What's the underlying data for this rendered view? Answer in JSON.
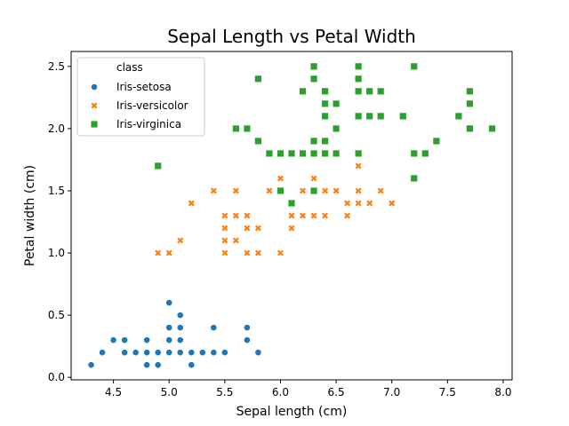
{
  "chart_data": {
    "type": "scatter",
    "title": "Sepal Length vs Petal Width",
    "xlabel": "Sepal length (cm)",
    "ylabel": "Petal width (cm)",
    "xlim": [
      4.12,
      8.08
    ],
    "ylim": [
      -0.02,
      2.62
    ],
    "x_ticks": [
      4.5,
      5.0,
      5.5,
      6.0,
      6.5,
      7.0,
      7.5,
      8.0
    ],
    "x_tick_labels": [
      "4.5",
      "5.0",
      "5.5",
      "6.0",
      "6.5",
      "7.0",
      "7.5",
      "8.0"
    ],
    "y_ticks": [
      0.0,
      0.5,
      1.0,
      1.5,
      2.0,
      2.5
    ],
    "y_tick_labels": [
      "0.0",
      "0.5",
      "1.0",
      "1.5",
      "2.0",
      "2.5"
    ],
    "grid": false,
    "legend": {
      "title": "class",
      "placement": "top-left"
    },
    "series": [
      {
        "name": "Iris-setosa",
        "marker": "circle",
        "color": "#1f77b4",
        "points": [
          [
            4.3,
            0.1
          ],
          [
            4.4,
            0.2
          ],
          [
            4.5,
            0.3
          ],
          [
            4.6,
            0.2
          ],
          [
            4.6,
            0.3
          ],
          [
            4.7,
            0.2
          ],
          [
            4.8,
            0.1
          ],
          [
            4.8,
            0.2
          ],
          [
            4.8,
            0.3
          ],
          [
            4.9,
            0.1
          ],
          [
            4.9,
            0.2
          ],
          [
            5.0,
            0.2
          ],
          [
            5.0,
            0.3
          ],
          [
            5.0,
            0.4
          ],
          [
            5.0,
            0.6
          ],
          [
            5.1,
            0.2
          ],
          [
            5.1,
            0.3
          ],
          [
            5.1,
            0.4
          ],
          [
            5.1,
            0.5
          ],
          [
            5.2,
            0.1
          ],
          [
            5.2,
            0.2
          ],
          [
            5.3,
            0.2
          ],
          [
            5.4,
            0.2
          ],
          [
            5.4,
            0.4
          ],
          [
            5.5,
            0.2
          ],
          [
            5.7,
            0.3
          ],
          [
            5.7,
            0.4
          ],
          [
            5.8,
            0.2
          ]
        ]
      },
      {
        "name": "Iris-versicolor",
        "marker": "x",
        "color": "#ff7f0e",
        "points": [
          [
            4.9,
            1.0
          ],
          [
            5.0,
            1.0
          ],
          [
            5.1,
            1.1
          ],
          [
            5.2,
            1.4
          ],
          [
            5.4,
            1.5
          ],
          [
            5.5,
            1.0
          ],
          [
            5.5,
            1.1
          ],
          [
            5.5,
            1.2
          ],
          [
            5.5,
            1.3
          ],
          [
            5.6,
            1.1
          ],
          [
            5.6,
            1.3
          ],
          [
            5.6,
            1.5
          ],
          [
            5.7,
            1.0
          ],
          [
            5.7,
            1.2
          ],
          [
            5.7,
            1.3
          ],
          [
            5.8,
            1.0
          ],
          [
            5.8,
            1.2
          ],
          [
            5.9,
            1.5
          ],
          [
            6.0,
            1.0
          ],
          [
            6.0,
            1.5
          ],
          [
            6.0,
            1.6
          ],
          [
            6.1,
            1.2
          ],
          [
            6.1,
            1.3
          ],
          [
            6.1,
            1.4
          ],
          [
            6.2,
            1.3
          ],
          [
            6.2,
            1.5
          ],
          [
            6.3,
            1.3
          ],
          [
            6.3,
            1.5
          ],
          [
            6.3,
            1.6
          ],
          [
            6.4,
            1.3
          ],
          [
            6.4,
            1.5
          ],
          [
            6.5,
            1.5
          ],
          [
            6.6,
            1.3
          ],
          [
            6.6,
            1.4
          ],
          [
            6.7,
            1.4
          ],
          [
            6.7,
            1.5
          ],
          [
            6.7,
            1.7
          ],
          [
            6.8,
            1.4
          ],
          [
            6.9,
            1.5
          ],
          [
            7.0,
            1.4
          ]
        ]
      },
      {
        "name": "Iris-virginica",
        "marker": "square",
        "color": "#2ca02c",
        "points": [
          [
            4.9,
            1.7
          ],
          [
            5.6,
            2.0
          ],
          [
            5.7,
            2.0
          ],
          [
            5.8,
            1.9
          ],
          [
            5.8,
            2.4
          ],
          [
            5.9,
            1.8
          ],
          [
            6.0,
            1.5
          ],
          [
            6.0,
            1.8
          ],
          [
            6.1,
            1.4
          ],
          [
            6.1,
            1.8
          ],
          [
            6.2,
            1.8
          ],
          [
            6.2,
            2.3
          ],
          [
            6.3,
            1.5
          ],
          [
            6.3,
            1.8
          ],
          [
            6.3,
            1.9
          ],
          [
            6.3,
            2.4
          ],
          [
            6.3,
            2.5
          ],
          [
            6.4,
            1.8
          ],
          [
            6.4,
            1.9
          ],
          [
            6.4,
            2.1
          ],
          [
            6.4,
            2.2
          ],
          [
            6.4,
            2.3
          ],
          [
            6.5,
            1.8
          ],
          [
            6.5,
            2.0
          ],
          [
            6.5,
            2.2
          ],
          [
            6.7,
            1.8
          ],
          [
            6.7,
            2.1
          ],
          [
            6.7,
            2.3
          ],
          [
            6.7,
            2.4
          ],
          [
            6.7,
            2.5
          ],
          [
            6.8,
            2.1
          ],
          [
            6.8,
            2.3
          ],
          [
            6.9,
            2.1
          ],
          [
            6.9,
            2.3
          ],
          [
            7.1,
            2.1
          ],
          [
            7.2,
            1.6
          ],
          [
            7.2,
            1.8
          ],
          [
            7.2,
            2.5
          ],
          [
            7.3,
            1.8
          ],
          [
            7.4,
            1.9
          ],
          [
            7.6,
            2.1
          ],
          [
            7.7,
            2.0
          ],
          [
            7.7,
            2.2
          ],
          [
            7.7,
            2.3
          ],
          [
            7.9,
            2.0
          ]
        ]
      }
    ]
  }
}
